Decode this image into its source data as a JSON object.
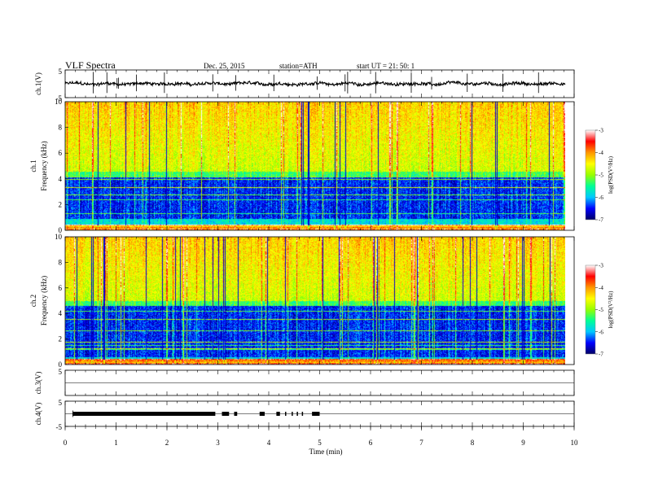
{
  "header": {
    "title": "VLF Spectra",
    "date": "Dec. 25, 2015",
    "station": "station=ATH",
    "start": "start UT =   21: 50: 1"
  },
  "chart_data": [
    {
      "type": "line",
      "name": "ch1-waveform",
      "ylabel": "ch.1(V)",
      "ylim": [
        -5,
        5
      ],
      "yticks": [
        5,
        -5
      ],
      "xlim": [
        0,
        10
      ],
      "baseline": 0,
      "data_end_min": 9.82,
      "spikes_min": [
        0.55,
        0.82,
        1.02,
        1.05,
        1.4,
        1.95,
        2.9,
        3.35,
        4.1,
        4.95,
        5.5,
        5.55,
        6.1,
        6.8,
        7.2,
        7.9,
        8.6,
        9.3
      ]
    },
    {
      "type": "heatmap",
      "name": "ch1-spectrogram",
      "ylabel_channel": "ch.1",
      "ylabel": "Frequency (kHz)",
      "ylim": [
        0,
        10
      ],
      "yticks": [
        0,
        2,
        4,
        6,
        8,
        10
      ],
      "xlim": [
        0,
        10
      ],
      "data_end_min": 9.82,
      "blue_band_khz": [
        0.9,
        4.2
      ],
      "colorbar": {
        "label": "log(PSD(V²/Hz)",
        "range": [
          -7,
          -3
        ],
        "ticks": [
          "-3",
          "-4",
          "-5",
          "-6",
          "-7"
        ],
        "colors": [
          "#000064",
          "#0000ff",
          "#00c8ff",
          "#00ff96",
          "#96ff00",
          "#ffff00",
          "#ff9600",
          "#ff0000",
          "#ffffff"
        ]
      }
    },
    {
      "type": "heatmap",
      "name": "ch2-spectrogram",
      "ylabel_channel": "ch.2",
      "ylabel": "Frequency (kHz)",
      "ylim": [
        0,
        10
      ],
      "yticks": [
        0,
        2,
        4,
        6,
        8,
        10
      ],
      "xlim": [
        0,
        10
      ],
      "data_end_min": 9.82,
      "blue_band_khz": [
        0.6,
        4.6
      ],
      "colorbar": {
        "label": "log(PSD(V²/Hz)",
        "range": [
          -7,
          -3
        ],
        "ticks": [
          "-3",
          "-4",
          "-5",
          "-6",
          "-7"
        ],
        "colors": [
          "#000064",
          "#0000ff",
          "#00c8ff",
          "#00ff96",
          "#96ff00",
          "#ffff00",
          "#ff9600",
          "#ff0000",
          "#ffffff"
        ]
      }
    },
    {
      "type": "line",
      "name": "ch3-waveform",
      "ylabel": "ch.3(V)",
      "ylim": [
        -5,
        5
      ],
      "yticks": [
        5
      ],
      "xlim": [
        0,
        10
      ],
      "baseline": 0
    },
    {
      "type": "line",
      "name": "ch4-waveform",
      "ylabel": "ch.4(V)",
      "ylim": [
        -5,
        5
      ],
      "yticks": [
        5,
        -5
      ],
      "xlim": [
        0,
        10
      ],
      "baseline": 0,
      "bursts_min": [
        [
          0.15,
          2.95
        ],
        [
          3.08,
          3.22
        ],
        [
          3.32,
          3.38
        ],
        [
          3.82,
          3.92
        ],
        [
          4.15,
          4.22
        ],
        [
          4.32,
          4.34
        ],
        [
          4.45,
          4.47
        ],
        [
          4.55,
          4.57
        ],
        [
          4.65,
          4.67
        ],
        [
          4.85,
          5.0
        ]
      ]
    }
  ],
  "xaxis": {
    "label": "Time (min)",
    "range": [
      0,
      10
    ],
    "ticks": [
      "0",
      "1",
      "2",
      "3",
      "4",
      "5",
      "6",
      "7",
      "8",
      "9",
      "10"
    ]
  }
}
